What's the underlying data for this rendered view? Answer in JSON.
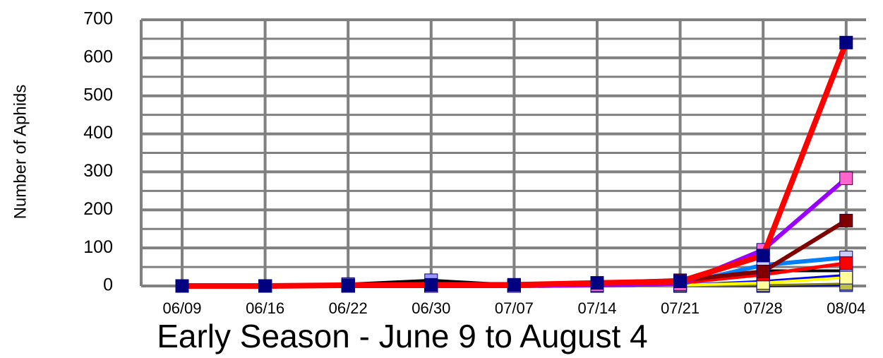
{
  "chart_data": {
    "type": "line",
    "title": "Early Season - June 9 to August 4",
    "y_label": "Number of Aphids",
    "categories": [
      "06/09",
      "06/16",
      "06/22",
      "06/30",
      "07/07",
      "07/14",
      "07/21",
      "07/28",
      "08/04"
    ],
    "ylim": [
      0,
      700
    ],
    "yticks": [
      0,
      100,
      200,
      300,
      400,
      500,
      600,
      700
    ],
    "minor_yticks": [
      50,
      150,
      250,
      350,
      450,
      550,
      650
    ],
    "grid": true,
    "series": [
      {
        "color": "#000080",
        "marker_color": "#8080c0",
        "values": [
          0,
          0,
          0,
          2,
          0,
          0,
          0,
          0,
          2
        ]
      },
      {
        "color": "#808000",
        "marker_color": "#c0c040",
        "values": [
          0,
          0,
          0,
          0,
          0,
          0,
          0,
          2,
          6
        ]
      },
      {
        "color": "#0000ff",
        "marker_color": "#0000ff",
        "values": [
          0,
          0,
          0,
          0,
          0,
          0,
          2,
          12,
          28
        ]
      },
      {
        "color": "#000000",
        "marker_color": "#9999ff",
        "values": [
          0,
          0,
          5,
          15,
          3,
          3,
          5,
          40,
          40
        ]
      },
      {
        "color": "#ffff00",
        "marker_color": "#ffff99",
        "values": [
          0,
          0,
          0,
          0,
          0,
          0,
          2,
          8,
          22
        ]
      },
      {
        "color": "#0080ff",
        "marker_color": "#ccccff",
        "values": [
          0,
          0,
          0,
          0,
          0,
          2,
          5,
          55,
          75
        ]
      },
      {
        "color": "#ff0000",
        "marker_color": "#ff0000",
        "values": [
          0,
          0,
          0,
          0,
          2,
          5,
          8,
          30,
          60
        ]
      },
      {
        "color": "#800000",
        "marker_color": "#800000",
        "values": [
          0,
          0,
          0,
          0,
          2,
          8,
          15,
          38,
          172
        ]
      },
      {
        "color": "#9900ff",
        "marker_color": "#ff66cc",
        "values": [
          0,
          0,
          0,
          0,
          0,
          2,
          5,
          95,
          283
        ]
      },
      {
        "color": "#ff0000",
        "marker_color": "#000080",
        "values": [
          0,
          0,
          2,
          3,
          3,
          8,
          12,
          80,
          640
        ]
      }
    ]
  }
}
